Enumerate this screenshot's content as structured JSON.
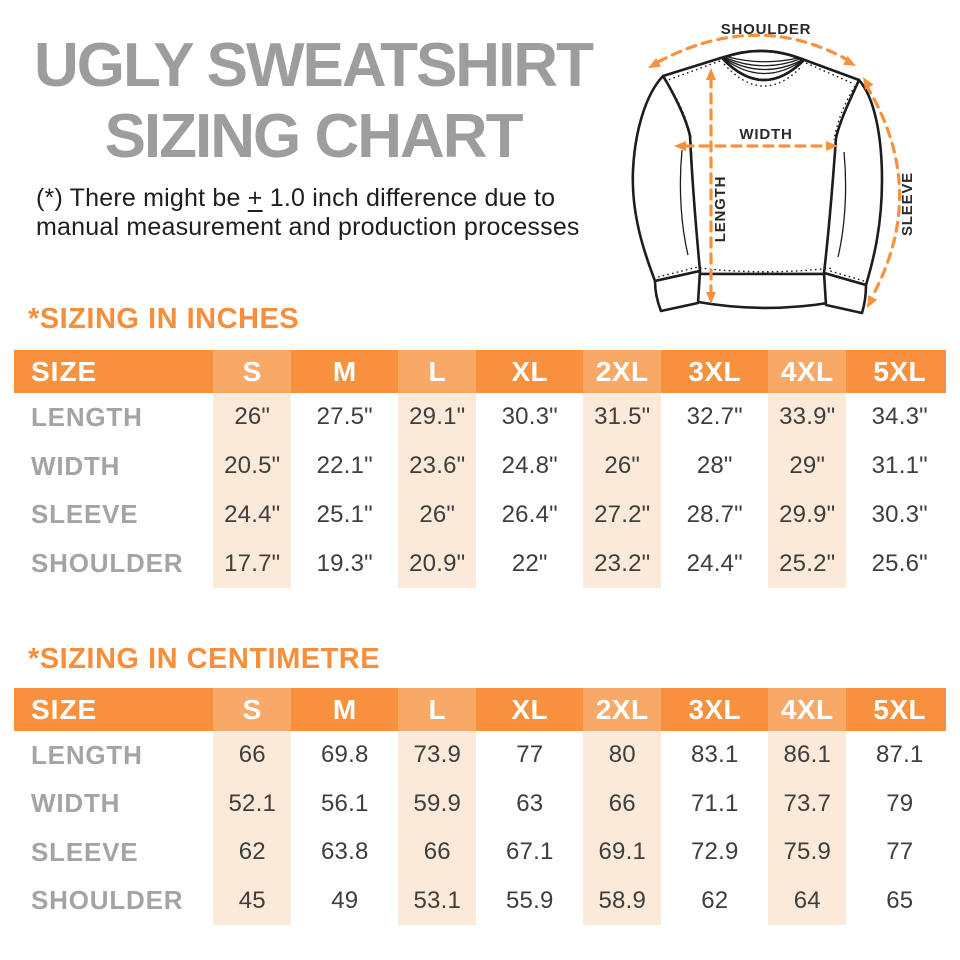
{
  "title": {
    "line1": "UGLY SWEATSHIRT",
    "line2": "SIZING CHART"
  },
  "note": {
    "line1_pre": "(*) There might be ",
    "plus_sign": "+",
    "line1_post": " 1.0 inch difference due to",
    "line2": "manual measurement and production processes"
  },
  "diagram": {
    "labels": {
      "shoulder": "SHOULDER",
      "width": "WIDTH",
      "length": "LENGTH",
      "sleeve": "SLEEVE"
    }
  },
  "colors": {
    "accent_orange": "#f7913d",
    "header_shaded_cell": "#f8a35f",
    "column_stripe": "#fbe9d9",
    "title_gray": "#9d9d9d",
    "row_label_gray": "#a4a4a4",
    "value_text": "#3e3e3d",
    "note_text": "#1e1e1c",
    "diagram_line": "#1d1d1d"
  },
  "tables": [
    {
      "heading": "*SIZING IN INCHES",
      "size_label": "SIZE",
      "columns": [
        "S",
        "M",
        "L",
        "XL",
        "2XL",
        "3XL",
        "4XL",
        "5XL"
      ],
      "rows": [
        {
          "label": "LENGTH",
          "values": [
            "26\"",
            "27.5\"",
            "29.1\"",
            "30.3\"",
            "31.5\"",
            "32.7\"",
            "33.9\"",
            "34.3\""
          ]
        },
        {
          "label": "WIDTH",
          "values": [
            "20.5\"",
            "22.1\"",
            "23.6\"",
            "24.8\"",
            "26\"",
            "28\"",
            "29\"",
            "31.1\""
          ]
        },
        {
          "label": "SLEEVE",
          "values": [
            "24.4\"",
            "25.1\"",
            "26\"",
            "26.4\"",
            "27.2\"",
            "28.7\"",
            "29.9\"",
            "30.3\""
          ]
        },
        {
          "label": "SHOULDER",
          "values": [
            "17.7\"",
            "19.3\"",
            "20.9\"",
            "22\"",
            "23.2\"",
            "24.4\"",
            "25.2\"",
            "25.6\""
          ]
        }
      ]
    },
    {
      "heading": "*SIZING IN CENTIMETRE",
      "size_label": "SIZE",
      "columns": [
        "S",
        "M",
        "L",
        "XL",
        "2XL",
        "3XL",
        "4XL",
        "5XL"
      ],
      "rows": [
        {
          "label": "LENGTH",
          "values": [
            "66",
            "69.8",
            "73.9",
            "77",
            "80",
            "83.1",
            "86.1",
            "87.1"
          ]
        },
        {
          "label": "WIDTH",
          "values": [
            "52.1",
            "56.1",
            "59.9",
            "63",
            "66",
            "71.1",
            "73.7",
            "79"
          ]
        },
        {
          "label": "SLEEVE",
          "values": [
            "62",
            "63.8",
            "66",
            "67.1",
            "69.1",
            "72.9",
            "75.9",
            "77"
          ]
        },
        {
          "label": "SHOULDER",
          "values": [
            "45",
            "49",
            "53.1",
            "55.9",
            "58.9",
            "62",
            "64",
            "65"
          ]
        }
      ]
    }
  ]
}
